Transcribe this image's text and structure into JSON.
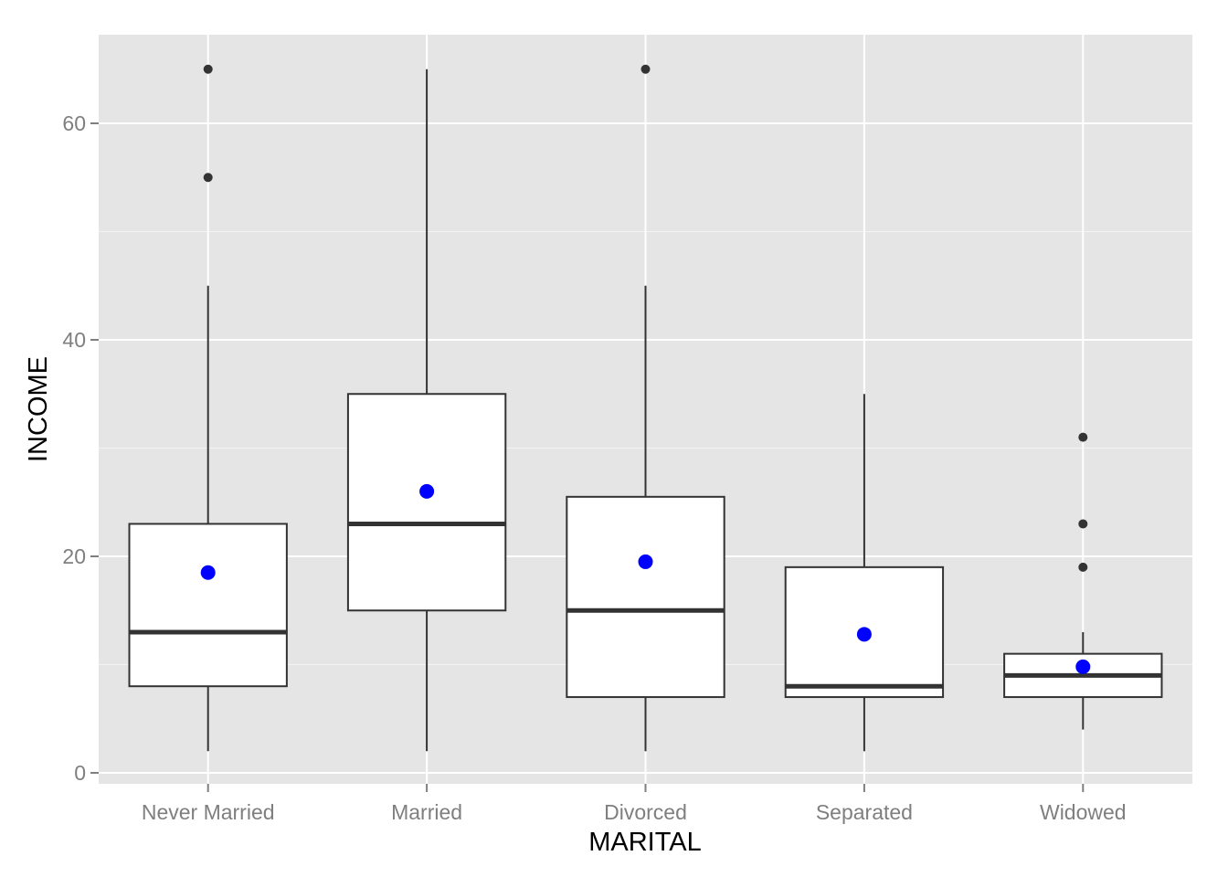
{
  "chart_data": {
    "type": "box",
    "xlabel": "MARITAL",
    "ylabel": "INCOME",
    "ylim": [
      -1,
      68
    ],
    "y_ticks": [
      0,
      20,
      40,
      60
    ],
    "y_tick_labels": [
      "0",
      "20",
      "40",
      "60"
    ],
    "grid": true,
    "categories": [
      "Never Married",
      "Married",
      "Divorced",
      "Separated",
      "Widowed"
    ],
    "boxes": [
      {
        "category": "Never Married",
        "lower_whisker": 2,
        "q1": 8,
        "median": 13,
        "q3": 23,
        "upper_whisker": 45,
        "mean": 18.5,
        "outliers": [
          55,
          65
        ]
      },
      {
        "category": "Married",
        "lower_whisker": 2,
        "q1": 15,
        "median": 23,
        "q3": 35,
        "upper_whisker": 65,
        "mean": 26,
        "outliers": []
      },
      {
        "category": "Divorced",
        "lower_whisker": 2,
        "q1": 7,
        "median": 15,
        "q3": 25.5,
        "upper_whisker": 45,
        "mean": 19.5,
        "outliers": [
          65
        ]
      },
      {
        "category": "Separated",
        "lower_whisker": 2,
        "q1": 7,
        "median": 8,
        "q3": 19,
        "upper_whisker": 35,
        "mean": 12.8,
        "outliers": []
      },
      {
        "category": "Widowed",
        "lower_whisker": 4,
        "q1": 7,
        "median": 9,
        "q3": 11,
        "upper_whisker": 13,
        "mean": 9.8,
        "outliers": [
          19,
          23,
          31
        ]
      }
    ],
    "colors": {
      "panel_background": "#e5e5e5",
      "grid": "#ffffff",
      "box_fill": "#ffffff",
      "box_line": "#333333",
      "outlier": "#333333",
      "mean_point": "#0000ff",
      "tick_text": "#7f7f7f"
    }
  }
}
